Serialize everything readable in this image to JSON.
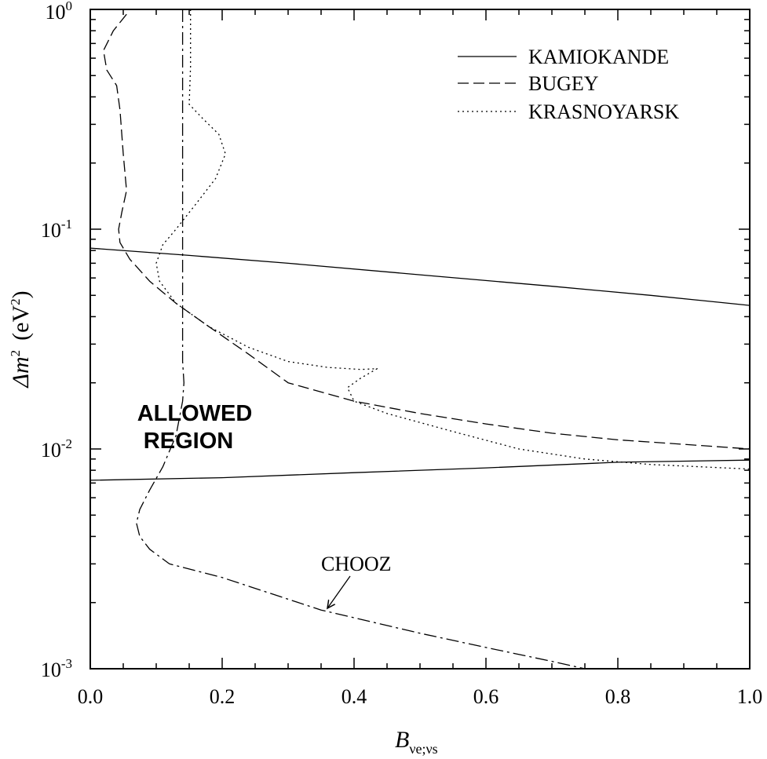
{
  "chart_data": {
    "type": "line",
    "title": "",
    "xlabel": {
      "base": "B",
      "sub": "νe;νs"
    },
    "ylabel": {
      "prefix": "Δm",
      "sup": "2",
      "unit_prefix": "(eV",
      "unit_sup": "2",
      "unit_suffix": ")"
    },
    "xlim": [
      0.0,
      1.0
    ],
    "ylim": [
      0.001,
      1
    ],
    "yscale": "log",
    "x_ticks": [
      "0.0",
      "0.2",
      "0.4",
      "0.6",
      "0.8",
      "1.0"
    ],
    "y_ticks": [
      {
        "base": "10",
        "exp": "-3",
        "value": 0.001
      },
      {
        "base": "10",
        "exp": "-2",
        "value": 0.01
      },
      {
        "base": "10",
        "exp": "-1",
        "value": 0.1
      },
      {
        "base": "10",
        "exp": "0",
        "value": 1
      }
    ],
    "grid": false,
    "legend_position": "top-right",
    "series": [
      {
        "name": "KAMIOKANDE",
        "style": "solid",
        "segments": [
          [
            [
              0.0,
              0.082
            ],
            [
              0.15,
              0.076
            ],
            [
              0.3,
              0.07
            ],
            [
              0.5,
              0.062
            ],
            [
              0.7,
              0.055
            ],
            [
              0.85,
              0.05
            ],
            [
              1.0,
              0.045
            ]
          ],
          [
            [
              0.0,
              0.0072
            ],
            [
              0.2,
              0.0074
            ],
            [
              0.4,
              0.0078
            ],
            [
              0.6,
              0.0082
            ],
            [
              0.8,
              0.0087
            ],
            [
              1.0,
              0.0089
            ]
          ]
        ]
      },
      {
        "name": "BUGEY",
        "style": "dashed",
        "segments": [
          [
            [
              0.055,
              0.95
            ],
            [
              0.035,
              0.8
            ],
            [
              0.02,
              0.65
            ],
            [
              0.025,
              0.53
            ],
            [
              0.04,
              0.45
            ],
            [
              0.045,
              0.35
            ],
            [
              0.05,
              0.22
            ],
            [
              0.055,
              0.15
            ],
            [
              0.048,
              0.12
            ],
            [
              0.043,
              0.1
            ],
            [
              0.045,
              0.087
            ],
            [
              0.06,
              0.073
            ],
            [
              0.09,
              0.058
            ],
            [
              0.13,
              0.046
            ],
            [
              0.18,
              0.036
            ],
            [
              0.24,
              0.027
            ],
            [
              0.3,
              0.02
            ],
            [
              0.4,
              0.0165
            ],
            [
              0.5,
              0.0145
            ],
            [
              0.6,
              0.013
            ],
            [
              0.7,
              0.0118
            ],
            [
              0.8,
              0.011
            ],
            [
              0.9,
              0.0105
            ],
            [
              1.0,
              0.01
            ]
          ]
        ]
      },
      {
        "name": "KRASNOYARSK",
        "style": "dotted",
        "segments": [
          [
            [
              0.152,
              1.0
            ],
            [
              0.152,
              0.55
            ],
            [
              0.15,
              0.37
            ],
            [
              0.17,
              0.32
            ],
            [
              0.195,
              0.27
            ],
            [
              0.205,
              0.22
            ],
            [
              0.19,
              0.17
            ],
            [
              0.16,
              0.13
            ],
            [
              0.13,
              0.1
            ],
            [
              0.11,
              0.085
            ],
            [
              0.1,
              0.07
            ],
            [
              0.105,
              0.058
            ],
            [
              0.13,
              0.046
            ],
            [
              0.18,
              0.036
            ],
            [
              0.24,
              0.029
            ],
            [
              0.3,
              0.025
            ],
            [
              0.36,
              0.0235
            ],
            [
              0.41,
              0.023
            ],
            [
              0.435,
              0.0232
            ],
            [
              0.41,
              0.021
            ],
            [
              0.39,
              0.019
            ],
            [
              0.4,
              0.0165
            ],
            [
              0.45,
              0.0145
            ],
            [
              0.55,
              0.012
            ],
            [
              0.65,
              0.01
            ],
            [
              0.75,
              0.009
            ],
            [
              0.85,
              0.0085
            ],
            [
              1.0,
              0.0081
            ]
          ]
        ]
      },
      {
        "name": "CHOOZ",
        "style": "dashdot",
        "segments": [
          [
            [
              0.14,
              1.0
            ],
            [
              0.14,
              0.5
            ],
            [
              0.14,
              0.2
            ],
            [
              0.14,
              0.1
            ],
            [
              0.14,
              0.06
            ],
            [
              0.14,
              0.035
            ],
            [
              0.14,
              0.025
            ],
            [
              0.142,
              0.02
            ],
            [
              0.14,
              0.0165
            ],
            [
              0.13,
              0.0115
            ],
            [
              0.11,
              0.0083
            ],
            [
              0.09,
              0.0065
            ],
            [
              0.075,
              0.0053
            ],
            [
              0.07,
              0.0046
            ],
            [
              0.075,
              0.004
            ],
            [
              0.09,
              0.0035
            ],
            [
              0.12,
              0.003
            ],
            [
              0.2,
              0.0026
            ],
            [
              0.35,
              0.00185
            ],
            [
              0.5,
              0.00145
            ],
            [
              0.6,
              0.00125
            ],
            [
              0.7,
              0.00108
            ],
            [
              0.75,
              0.001
            ]
          ]
        ]
      }
    ],
    "annotations": [
      {
        "text": "ALLOWED",
        "kind": "region"
      },
      {
        "text": "REGION",
        "kind": "region"
      },
      {
        "text": "CHOOZ",
        "kind": "arrow-label",
        "points_to": [
          0.37,
          0.00185
        ]
      }
    ]
  }
}
